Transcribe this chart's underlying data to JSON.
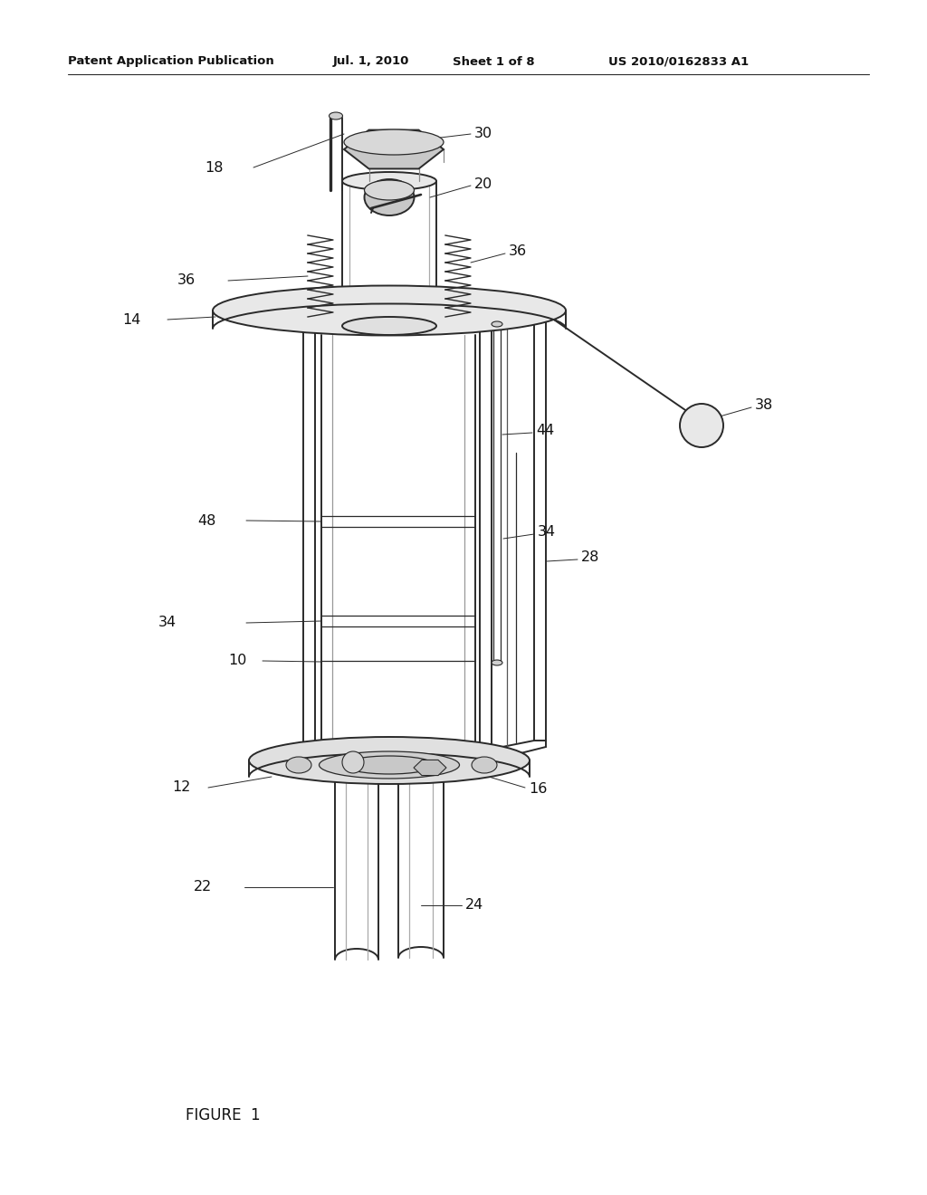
{
  "title_left": "Patent Application Publication",
  "title_mid": "Jul. 1, 2010",
  "title_mid2": "Sheet 1 of 8",
  "title_right": "US 2010/0162833 A1",
  "figure_label": "FIGURE  1",
  "bg_color": "#ffffff",
  "line_color": "#2a2a2a",
  "lw_main": 1.4,
  "lw_thin": 0.9,
  "lw_label": 0.7
}
